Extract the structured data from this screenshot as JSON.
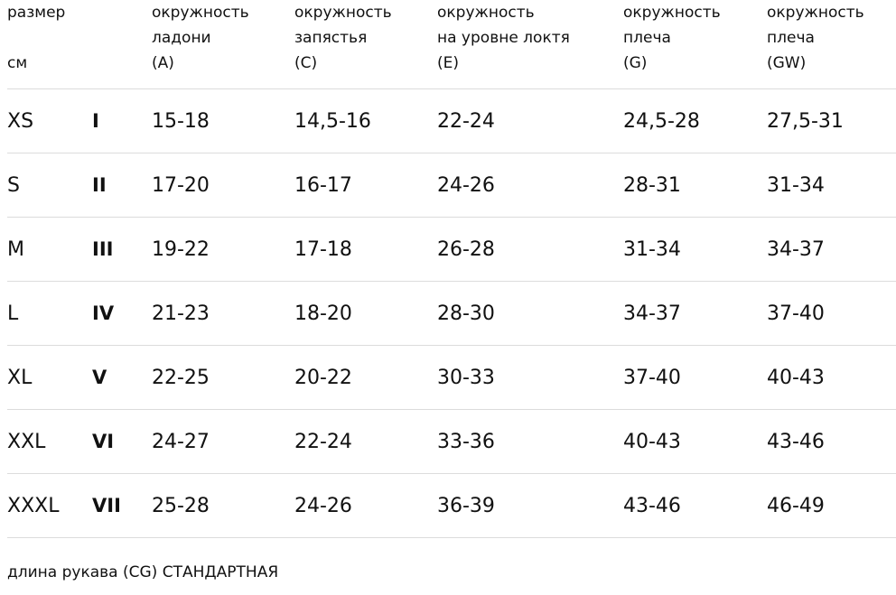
{
  "table": {
    "headers": [
      {
        "lines": [
          "размер",
          "",
          "см"
        ]
      },
      {
        "lines": [
          "",
          "",
          ""
        ]
      },
      {
        "lines": [
          "окружность",
          "ладони",
          "(A)"
        ]
      },
      {
        "lines": [
          "окружность",
          "запястья",
          "(C)"
        ]
      },
      {
        "lines": [
          "окружность",
          "на уровне локтя",
          "(E)"
        ]
      },
      {
        "lines": [
          "окружность",
          "плеча",
          "(G)"
        ]
      },
      {
        "lines": [
          "окружность",
          "плеча",
          "(GW)"
        ]
      }
    ],
    "rows": [
      [
        "XS",
        "I",
        "15-18",
        "14,5-16",
        "22-24",
        "24,5-28",
        "27,5-31"
      ],
      [
        "S",
        "II",
        "17-20",
        "16-17",
        "24-26",
        "28-31",
        "31-34"
      ],
      [
        "M",
        "III",
        "19-22",
        "17-18",
        "26-28",
        "31-34",
        "34-37"
      ],
      [
        "L",
        "IV",
        "21-23",
        "18-20",
        "28-30",
        "34-37",
        "37-40"
      ],
      [
        "XL",
        "V",
        "22-25",
        "20-22",
        "30-33",
        "37-40",
        "40-43"
      ],
      [
        "XXL",
        "VI",
        "24-27",
        "22-24",
        "33-36",
        "40-43",
        "43-46"
      ],
      [
        "XXXL",
        "VII",
        "25-28",
        "24-26",
        "36-39",
        "43-46",
        "46-49"
      ]
    ]
  },
  "footnote": "длина рукава (CG) СТАНДАРТНАЯ"
}
